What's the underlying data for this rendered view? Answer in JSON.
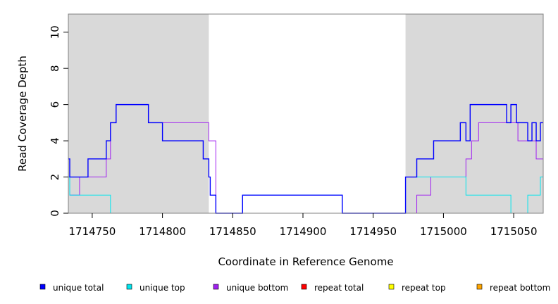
{
  "chart_data": {
    "type": "line",
    "title": "",
    "xlabel": "Coordinate in Reference Genome",
    "ylabel": "Read Coverage Depth",
    "xlim": [
      1714733,
      1715071
    ],
    "ylim": [
      0,
      11
    ],
    "x_ticks": [
      1714750,
      1714800,
      1714850,
      1714900,
      1714950,
      1715000,
      1715050
    ],
    "x_tick_labels": [
      "1714750",
      "1714800",
      "1714850",
      "1714900",
      "1714950",
      "1715000",
      "1715050"
    ],
    "y_ticks": [
      0,
      2,
      4,
      6,
      8,
      10
    ],
    "y_tick_labels": [
      "0",
      "2",
      "4",
      "6",
      "8",
      "10"
    ],
    "shaded_regions": [
      {
        "x0": 1714733,
        "x1": 1714833,
        "color": "#d9d9d9"
      },
      {
        "x0": 1714973,
        "x1": 1715071,
        "color": "#d9d9d9"
      }
    ],
    "grid": false,
    "legend_position": "bottom",
    "series": [
      {
        "name": "unique total",
        "color": "#0000ff",
        "x": [
          1714733,
          1714734,
          1714740,
          1714747,
          1714760,
          1714763,
          1714767,
          1714790,
          1714800,
          1714811,
          1714822,
          1714829,
          1714833,
          1714834,
          1714835,
          1714838,
          1714857,
          1714928,
          1714973,
          1714981,
          1714990,
          1714993,
          1715008,
          1715012,
          1715016,
          1715019,
          1715022,
          1715025,
          1715032,
          1715045,
          1715048,
          1715052,
          1715055,
          1715058,
          1715060,
          1715063,
          1715066,
          1715069,
          1715071
        ],
        "y": [
          3,
          2,
          2,
          3,
          4,
          5,
          6,
          5,
          4,
          4,
          4,
          3,
          2,
          1,
          1,
          0,
          1,
          0,
          2,
          3,
          3,
          4,
          4,
          5,
          4,
          6,
          6,
          6,
          6,
          5,
          6,
          5,
          5,
          5,
          4,
          5,
          4,
          5,
          5
        ]
      },
      {
        "name": "unique top",
        "color": "#00e5ee",
        "x": [
          1714733,
          1714734,
          1714745,
          1714755,
          1714763,
          1714833,
          1714838,
          1714857,
          1714928,
          1714973,
          1715008,
          1715016,
          1715044,
          1715048,
          1715060,
          1715069,
          1715071
        ],
        "y": [
          2,
          1,
          1,
          1,
          0,
          0,
          0,
          1,
          0,
          2,
          2,
          1,
          1,
          0,
          1,
          2,
          3
        ]
      },
      {
        "name": "unique bottom",
        "color": "#a020f0",
        "x": [
          1714733,
          1714734,
          1714741,
          1714755,
          1714760,
          1714763,
          1714767,
          1714790,
          1714833,
          1714838,
          1714973,
          1714981,
          1714991,
          1715008,
          1715016,
          1715020,
          1715025,
          1715045,
          1715053,
          1715060,
          1715066,
          1715071
        ],
        "y": [
          2,
          1,
          2,
          2,
          3,
          5,
          6,
          5,
          4,
          0,
          0,
          1,
          2,
          2,
          3,
          4,
          5,
          5,
          4,
          4,
          3,
          2
        ]
      },
      {
        "name": "repeat total",
        "color": "#ff0000",
        "x": [
          1714733,
          1715071
        ],
        "y": [
          0,
          0
        ]
      },
      {
        "name": "repeat top",
        "color": "#ffff00",
        "x": [
          1714733,
          1715071
        ],
        "y": [
          0,
          0
        ]
      },
      {
        "name": "repeat bottom",
        "color": "#ffa500",
        "x": [
          1714733,
          1715071
        ],
        "y": [
          0,
          0
        ]
      }
    ]
  }
}
